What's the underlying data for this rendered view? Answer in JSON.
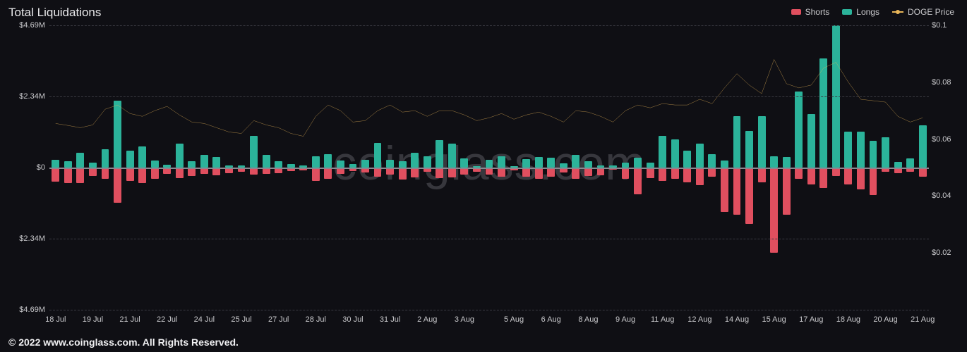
{
  "title": "Total Liquidations",
  "watermark": "coinglass.com",
  "footer": "© 2022 www.coinglass.com. All Rights Reserved.",
  "legend": {
    "shorts": {
      "label": "Shorts",
      "color": "#e04f5f"
    },
    "longs": {
      "label": "Longs",
      "color": "#2bb39a"
    },
    "price": {
      "label": "DOGE Price",
      "color": "#e8b558"
    }
  },
  "colors": {
    "background": "#0f0f14",
    "grid": "#3a3a42",
    "zero": "#888890",
    "axis_text": "#c9c9cc",
    "title_text": "#e8e8ea"
  },
  "chart": {
    "type": "bar+line",
    "left_axis": {
      "min": -4690000,
      "max": 4690000,
      "ticks": [
        {
          "v": 4690000,
          "label": "$4.69M"
        },
        {
          "v": 2340000,
          "label": "$2.34M"
        },
        {
          "v": 0,
          "label": "$0"
        },
        {
          "v": -2340000,
          "label": "$2.34M"
        },
        {
          "v": -4690000,
          "label": "$4.69M"
        }
      ]
    },
    "right_axis": {
      "min": 0.0,
      "max": 0.1,
      "ticks": [
        {
          "v": 0.1,
          "label": "$0.1"
        },
        {
          "v": 0.08,
          "label": "$0.08"
        },
        {
          "v": 0.06,
          "label": "$0.06"
        },
        {
          "v": 0.04,
          "label": "$0.04"
        },
        {
          "v": 0.02,
          "label": "$0.02"
        }
      ]
    },
    "x_labels": [
      "18 Jul",
      "19 Jul",
      "21 Jul",
      "22 Jul",
      "24 Jul",
      "25 Jul",
      "27 Jul",
      "28 Jul",
      "30 Jul",
      "31 Jul",
      "2 Aug",
      "3 Aug",
      "5 Aug",
      "6 Aug",
      "8 Aug",
      "9 Aug",
      "11 Aug",
      "12 Aug",
      "14 Aug",
      "15 Aug",
      "17 Aug",
      "18 Aug",
      "20 Aug",
      "21 Aug"
    ],
    "bar_width_ratio": 0.62,
    "longs": [
      250000,
      220000,
      480000,
      160000,
      600000,
      2200000,
      550000,
      700000,
      240000,
      90000,
      800000,
      220000,
      420000,
      350000,
      80000,
      60000,
      1050000,
      420000,
      200000,
      110000,
      60000,
      380000,
      440000,
      240000,
      120000,
      250000,
      820000,
      250000,
      210000,
      480000,
      380000,
      900000,
      800000,
      300000,
      40000,
      250000,
      380000,
      50000,
      280000,
      350000,
      330000,
      130000,
      420000,
      200000,
      80000,
      80000,
      160000,
      320000,
      160000,
      1050000,
      920000,
      560000,
      800000,
      440000,
      240000,
      1700000,
      1200000,
      1700000,
      380000,
      350000,
      2500000,
      1760000,
      3600000,
      4690000,
      1180000,
      1180000,
      880000,
      1000000,
      180000,
      300000,
      1400000
    ],
    "shorts": [
      470000,
      500000,
      520000,
      280000,
      380000,
      1170000,
      440000,
      520000,
      380000,
      200000,
      340000,
      280000,
      220000,
      260000,
      190000,
      140000,
      240000,
      220000,
      190000,
      110000,
      90000,
      430000,
      380000,
      200000,
      120000,
      170000,
      300000,
      230000,
      400000,
      330000,
      130000,
      340000,
      320000,
      240000,
      130000,
      230000,
      300000,
      90000,
      300000,
      380000,
      300000,
      160000,
      370000,
      280000,
      260000,
      70000,
      370000,
      880000,
      340000,
      440000,
      380000,
      480000,
      570000,
      300000,
      1470000,
      1560000,
      1850000,
      480000,
      2800000,
      1560000,
      380000,
      560000,
      680000,
      280000,
      560000,
      710000,
      900000,
      140000,
      180000,
      140000,
      300000
    ],
    "price": [
      0.0655,
      0.0648,
      0.064,
      0.065,
      0.0705,
      0.072,
      0.069,
      0.068,
      0.07,
      0.0715,
      0.0685,
      0.066,
      0.0655,
      0.064,
      0.0625,
      0.062,
      0.0665,
      0.065,
      0.064,
      0.062,
      0.061,
      0.068,
      0.072,
      0.07,
      0.066,
      0.0665,
      0.07,
      0.072,
      0.0695,
      0.07,
      0.068,
      0.07,
      0.07,
      0.0685,
      0.0665,
      0.0675,
      0.069,
      0.067,
      0.0685,
      0.0695,
      0.068,
      0.066,
      0.07,
      0.0695,
      0.068,
      0.066,
      0.07,
      0.072,
      0.071,
      0.0725,
      0.072,
      0.072,
      0.074,
      0.0725,
      0.078,
      0.083,
      0.079,
      0.076,
      0.088,
      0.0795,
      0.078,
      0.079,
      0.085,
      0.087,
      0.08,
      0.074,
      0.0735,
      0.073,
      0.068,
      0.066,
      0.0675
    ]
  }
}
